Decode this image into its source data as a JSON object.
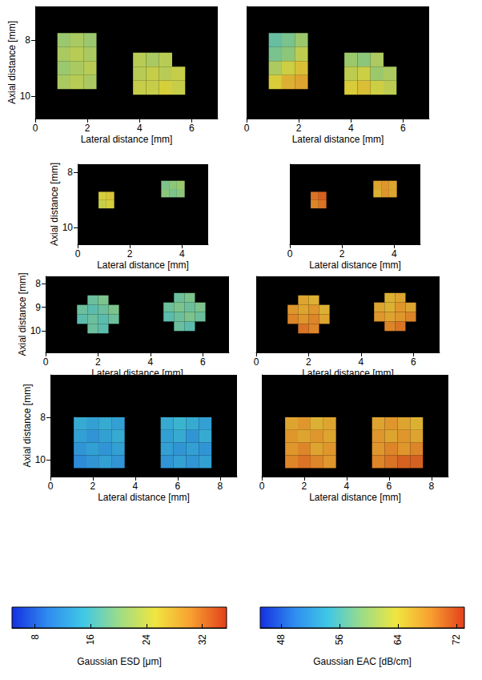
{
  "chart_data": [
    {
      "type": "heatmap",
      "colorbar_title": "Gaussian ESD [μm]",
      "xlabel": "Lateral distance [mm]",
      "ylabel": "Axial distance [mm]",
      "xlim": [
        0,
        7
      ],
      "xticks": [
        0,
        2,
        4,
        6
      ],
      "ylim": [
        10.8,
        6.8
      ],
      "yticks": [
        8,
        10
      ],
      "grid": false,
      "cell_size": 0.5,
      "cells": [
        [
          1.1,
          8.0,
          21
        ],
        [
          1.6,
          8.0,
          22
        ],
        [
          2.1,
          8.0,
          21
        ],
        [
          1.1,
          8.5,
          22
        ],
        [
          1.6,
          8.5,
          23
        ],
        [
          2.1,
          8.5,
          22
        ],
        [
          1.1,
          9.0,
          21
        ],
        [
          1.6,
          9.0,
          22
        ],
        [
          2.1,
          9.0,
          23
        ],
        [
          1.1,
          9.5,
          22
        ],
        [
          1.6,
          9.5,
          23
        ],
        [
          2.1,
          9.5,
          22
        ],
        [
          4.0,
          8.7,
          23
        ],
        [
          4.5,
          8.7,
          22
        ],
        [
          5.0,
          8.7,
          23
        ],
        [
          4.0,
          9.2,
          23
        ],
        [
          4.5,
          9.2,
          24
        ],
        [
          5.0,
          9.2,
          23
        ],
        [
          5.5,
          9.2,
          24
        ],
        [
          4.0,
          9.7,
          24
        ],
        [
          4.5,
          9.7,
          24
        ],
        [
          5.0,
          9.7,
          25
        ],
        [
          5.5,
          9.7,
          24
        ]
      ]
    },
    {
      "type": "heatmap",
      "colorbar_title": "Gaussian EAC [dB/cm]",
      "xlabel": "Lateral distance [mm]",
      "tick_labels": "x",
      "xlim": [
        0,
        7
      ],
      "xticks": [
        0,
        2,
        4,
        6
      ],
      "ylim": [
        10.8,
        6.8
      ],
      "grid": false,
      "cell_size": 0.5,
      "cells": [
        [
          1.1,
          8.0,
          57
        ],
        [
          1.6,
          8.0,
          58
        ],
        [
          2.1,
          8.0,
          60
        ],
        [
          1.1,
          8.5,
          58
        ],
        [
          1.6,
          8.5,
          59
        ],
        [
          2.1,
          8.5,
          62
        ],
        [
          1.1,
          9.0,
          61
        ],
        [
          1.6,
          9.0,
          63
        ],
        [
          2.1,
          9.0,
          65
        ],
        [
          1.1,
          9.5,
          64
        ],
        [
          1.6,
          9.5,
          66
        ],
        [
          2.1,
          9.5,
          67
        ],
        [
          4.0,
          8.7,
          60
        ],
        [
          4.5,
          8.7,
          59
        ],
        [
          5.0,
          8.7,
          61
        ],
        [
          4.0,
          9.2,
          62
        ],
        [
          4.5,
          9.2,
          63
        ],
        [
          5.0,
          9.2,
          60
        ],
        [
          5.5,
          9.2,
          61
        ],
        [
          4.0,
          9.7,
          64
        ],
        [
          4.5,
          9.7,
          65
        ],
        [
          5.0,
          9.7,
          63
        ],
        [
          5.5,
          9.7,
          62
        ]
      ]
    },
    {
      "type": "heatmap",
      "colorbar_title": "Gaussian ESD [μm]",
      "xlabel": "Lateral distance [mm]",
      "ylabel": "Axial distance [mm]",
      "xlim": [
        0,
        5
      ],
      "xticks": [
        0,
        2,
        4
      ],
      "ylim": [
        10.6,
        7.7
      ],
      "yticks": [
        8,
        10
      ],
      "grid": false,
      "cell_size": 0.3,
      "cells": [
        [
          0.95,
          8.85,
          25
        ],
        [
          1.25,
          8.85,
          26
        ],
        [
          0.95,
          9.15,
          24
        ],
        [
          1.25,
          9.15,
          25
        ],
        [
          3.35,
          8.45,
          19
        ],
        [
          3.65,
          8.45,
          20
        ],
        [
          3.95,
          8.45,
          21
        ],
        [
          3.35,
          8.75,
          20
        ],
        [
          3.65,
          8.75,
          19
        ],
        [
          3.95,
          8.75,
          20
        ]
      ]
    },
    {
      "type": "heatmap",
      "colorbar_title": "Gaussian EAC [dB/cm]",
      "xlabel": "Lateral distance [mm]",
      "tick_labels": "x",
      "xlim": [
        0,
        5
      ],
      "xticks": [
        0,
        2,
        4
      ],
      "ylim": [
        10.6,
        7.7
      ],
      "grid": false,
      "cell_size": 0.3,
      "cells": [
        [
          0.95,
          8.85,
          70
        ],
        [
          1.25,
          8.85,
          71
        ],
        [
          0.95,
          9.15,
          69
        ],
        [
          1.25,
          9.15,
          70
        ],
        [
          3.35,
          8.45,
          67
        ],
        [
          3.65,
          8.45,
          68
        ],
        [
          3.95,
          8.45,
          67
        ],
        [
          3.35,
          8.75,
          66
        ],
        [
          3.65,
          8.75,
          68
        ],
        [
          3.95,
          8.75,
          67
        ]
      ]
    },
    {
      "type": "heatmap",
      "colorbar_title": "Gaussian ESD [μm]",
      "xlabel": "Lateral distance [mm]",
      "ylabel": "Axial distance [mm]",
      "xlim": [
        0,
        7
      ],
      "xticks": [
        0,
        2,
        4,
        6
      ],
      "ylim": [
        10.9,
        7.7
      ],
      "yticks": [
        8,
        9,
        10
      ],
      "grid": false,
      "cell_size": 0.4,
      "cells": [
        [
          1.8,
          8.7,
          18
        ],
        [
          2.2,
          8.7,
          19
        ],
        [
          1.4,
          9.1,
          18
        ],
        [
          1.8,
          9.1,
          17
        ],
        [
          2.2,
          9.1,
          18
        ],
        [
          2.6,
          9.1,
          19
        ],
        [
          1.4,
          9.5,
          17
        ],
        [
          1.8,
          9.5,
          18
        ],
        [
          2.2,
          9.5,
          17
        ],
        [
          2.6,
          9.5,
          18
        ],
        [
          1.8,
          9.9,
          18
        ],
        [
          2.2,
          9.9,
          17
        ],
        [
          5.1,
          8.6,
          18
        ],
        [
          5.5,
          8.6,
          19
        ],
        [
          4.7,
          9.0,
          18
        ],
        [
          5.1,
          9.0,
          19
        ],
        [
          5.5,
          9.0,
          18
        ],
        [
          5.9,
          9.0,
          19
        ],
        [
          4.7,
          9.4,
          17
        ],
        [
          5.1,
          9.4,
          18
        ],
        [
          5.5,
          9.4,
          19
        ],
        [
          5.9,
          9.4,
          18
        ],
        [
          5.1,
          9.8,
          18
        ],
        [
          5.5,
          9.8,
          17
        ]
      ]
    },
    {
      "type": "heatmap",
      "colorbar_title": "Gaussian EAC [dB/cm]",
      "xlabel": "Lateral distance [mm]",
      "tick_labels": "x",
      "xlim": [
        0,
        7
      ],
      "xticks": [
        0,
        2,
        4,
        6
      ],
      "ylim": [
        10.9,
        7.7
      ],
      "grid": false,
      "cell_size": 0.4,
      "cells": [
        [
          1.8,
          8.7,
          67
        ],
        [
          2.2,
          8.7,
          66
        ],
        [
          1.4,
          9.1,
          68
        ],
        [
          1.8,
          9.1,
          67
        ],
        [
          2.2,
          9.1,
          68
        ],
        [
          2.6,
          9.1,
          66
        ],
        [
          1.4,
          9.5,
          69
        ],
        [
          1.8,
          9.5,
          68
        ],
        [
          2.2,
          9.5,
          69
        ],
        [
          2.6,
          9.5,
          67
        ],
        [
          1.8,
          9.9,
          70
        ],
        [
          2.2,
          9.9,
          69
        ],
        [
          5.1,
          8.6,
          66
        ],
        [
          5.5,
          8.6,
          67
        ],
        [
          4.7,
          9.0,
          67
        ],
        [
          5.1,
          9.0,
          66
        ],
        [
          5.5,
          9.0,
          68
        ],
        [
          5.9,
          9.0,
          67
        ],
        [
          4.7,
          9.4,
          68
        ],
        [
          5.1,
          9.4,
          67
        ],
        [
          5.5,
          9.4,
          68
        ],
        [
          5.9,
          9.4,
          69
        ],
        [
          5.1,
          9.8,
          69
        ],
        [
          5.5,
          9.8,
          70
        ]
      ]
    },
    {
      "type": "heatmap",
      "colorbar_title": "Gaussian ESD [μm]",
      "xlabel": "Lateral distance [mm]",
      "ylabel": "Axial distance [mm]",
      "xlim": [
        0,
        8.8
      ],
      "xticks": [
        0,
        2,
        4,
        6,
        8
      ],
      "ylim": [
        10.8,
        6.0
      ],
      "yticks": [
        8,
        10
      ],
      "grid": false,
      "cell_size": 0.6,
      "cells": [
        [
          1.4,
          8.3,
          14
        ],
        [
          2.0,
          8.3,
          13
        ],
        [
          2.6,
          8.3,
          14
        ],
        [
          3.2,
          8.3,
          13
        ],
        [
          1.4,
          8.9,
          13
        ],
        [
          2.0,
          8.9,
          12
        ],
        [
          2.6,
          8.9,
          13
        ],
        [
          3.2,
          8.9,
          14
        ],
        [
          1.4,
          9.5,
          12
        ],
        [
          2.0,
          9.5,
          13
        ],
        [
          2.6,
          9.5,
          12
        ],
        [
          3.2,
          9.5,
          13
        ],
        [
          1.4,
          10.1,
          11
        ],
        [
          2.0,
          10.1,
          12
        ],
        [
          2.6,
          10.1,
          13
        ],
        [
          3.2,
          10.1,
          12
        ],
        [
          5.5,
          8.3,
          14
        ],
        [
          6.1,
          8.3,
          15
        ],
        [
          6.7,
          8.3,
          14
        ],
        [
          7.3,
          8.3,
          13
        ],
        [
          5.5,
          8.9,
          13
        ],
        [
          6.1,
          8.9,
          14
        ],
        [
          6.7,
          8.9,
          12
        ],
        [
          7.3,
          8.9,
          14
        ],
        [
          5.5,
          9.5,
          13
        ],
        [
          6.1,
          9.5,
          12
        ],
        [
          6.7,
          9.5,
          13
        ],
        [
          7.3,
          9.5,
          12
        ],
        [
          5.5,
          10.1,
          12
        ],
        [
          6.1,
          10.1,
          13
        ],
        [
          6.7,
          10.1,
          12
        ],
        [
          7.3,
          10.1,
          13
        ]
      ]
    },
    {
      "type": "heatmap",
      "colorbar_title": "Gaussian EAC [dB/cm]",
      "xlabel": "Lateral distance [mm]",
      "tick_labels": "x",
      "xlim": [
        0,
        8.8
      ],
      "xticks": [
        0,
        2,
        4,
        6,
        8
      ],
      "ylim": [
        10.8,
        6.0
      ],
      "grid": false,
      "cell_size": 0.6,
      "cells": [
        [
          1.4,
          8.3,
          67
        ],
        [
          2.0,
          8.3,
          68
        ],
        [
          2.6,
          8.3,
          66
        ],
        [
          3.2,
          8.3,
          67
        ],
        [
          1.4,
          8.9,
          68
        ],
        [
          2.0,
          8.9,
          67
        ],
        [
          2.6,
          8.9,
          68
        ],
        [
          3.2,
          8.9,
          67
        ],
        [
          1.4,
          9.5,
          68
        ],
        [
          2.0,
          9.5,
          69
        ],
        [
          2.6,
          9.5,
          67
        ],
        [
          3.2,
          9.5,
          68
        ],
        [
          1.4,
          10.1,
          69
        ],
        [
          2.0,
          10.1,
          70
        ],
        [
          2.6,
          10.1,
          69
        ],
        [
          3.2,
          10.1,
          68
        ],
        [
          5.5,
          8.3,
          67
        ],
        [
          6.1,
          8.3,
          68
        ],
        [
          6.7,
          8.3,
          67
        ],
        [
          7.3,
          8.3,
          66
        ],
        [
          5.5,
          8.9,
          68
        ],
        [
          6.1,
          8.9,
          67
        ],
        [
          6.7,
          8.9,
          68
        ],
        [
          7.3,
          8.9,
          67
        ],
        [
          5.5,
          9.5,
          68
        ],
        [
          6.1,
          9.5,
          69
        ],
        [
          6.7,
          9.5,
          68
        ],
        [
          7.3,
          9.5,
          69
        ],
        [
          5.5,
          10.1,
          69
        ],
        [
          6.1,
          10.1,
          70
        ],
        [
          6.7,
          10.1,
          71
        ],
        [
          7.3,
          10.1,
          71
        ]
      ]
    },
    {
      "type": "colorbar",
      "title": "Gaussian ESD [μm]",
      "xlim": [
        4.7,
        35.5
      ],
      "xticks": [
        8,
        16,
        24,
        32
      ]
    },
    {
      "type": "colorbar",
      "title": "Gaussian EAC [dB/cm]",
      "xlim": [
        45.1,
        73.1
      ],
      "xticks": [
        48,
        56,
        64,
        72
      ]
    }
  ]
}
